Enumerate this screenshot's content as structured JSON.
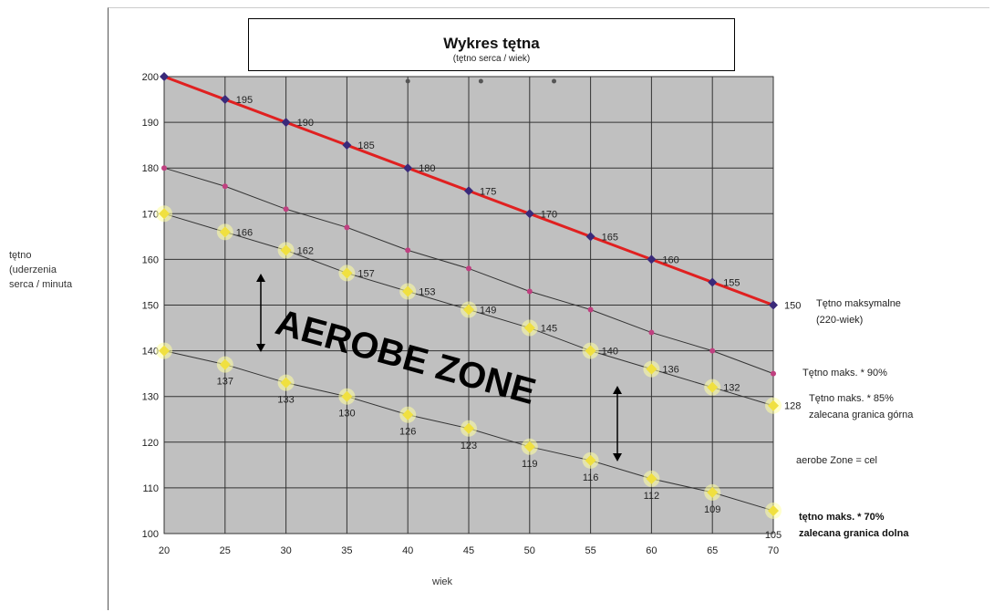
{
  "chart_data": {
    "type": "line",
    "title": "Wykres tętna",
    "subtitle": "(tętno serca / wiek)",
    "ylabel": "tętno\n(uderzenia\nserca / minuta",
    "xlabel": "wiek",
    "x": [
      20,
      25,
      30,
      35,
      40,
      45,
      50,
      55,
      60,
      65,
      70
    ],
    "xlim": [
      20,
      70
    ],
    "ylim": [
      100,
      200
    ],
    "yticks": [
      100,
      110,
      120,
      130,
      140,
      150,
      160,
      170,
      180,
      190,
      200
    ],
    "grid": true,
    "series": [
      {
        "key": "max",
        "values": [
          200,
          195,
          190,
          185,
          180,
          175,
          170,
          165,
          160,
          155,
          150
        ],
        "color": "#e02020",
        "marker": "#3a2a7a",
        "labels": [
          "",
          "195",
          "190",
          "185",
          "180",
          "175",
          "170",
          "165",
          "160",
          "155",
          "150"
        ],
        "label_pos": "right"
      },
      {
        "key": "p90",
        "values": [
          180,
          176,
          171,
          167,
          162,
          158,
          153,
          149,
          144,
          140,
          135
        ],
        "color": "#333333",
        "marker": "#c04080",
        "labels": [],
        "label_pos": "none"
      },
      {
        "key": "p85",
        "values": [
          170,
          166,
          162,
          157,
          153,
          149,
          145,
          140,
          136,
          132,
          128
        ],
        "color": "#333333",
        "marker": "#f0e040",
        "labels": [
          "",
          "166",
          "162",
          "157",
          "153",
          "149",
          "145",
          "140",
          "136",
          "132",
          "128"
        ],
        "label_pos": "right"
      },
      {
        "key": "p70",
        "values": [
          140,
          137,
          133,
          130,
          126,
          123,
          119,
          116,
          112,
          109,
          105
        ],
        "color": "#333333",
        "marker": "#f0e040",
        "labels": [
          "",
          "137",
          "133",
          "130",
          "126",
          "123",
          "119",
          "116",
          "112",
          "109",
          "105"
        ],
        "label_pos": "below"
      }
    ],
    "annotations": {
      "zone_text": "AEROBE ZONE",
      "legend_max_1": "Tętno maksymalne",
      "legend_max_2": "(220-wiek)",
      "legend_90": "Tętno maks. * 90%",
      "legend_85_1": "Tętno maks. * 85%",
      "legend_85_2": "zalecana granica górna",
      "legend_zone": "aerobe Zone = cel",
      "legend_70_1": "tętno maks. * 70%",
      "legend_70_2": "zalecana granica dolna"
    }
  }
}
